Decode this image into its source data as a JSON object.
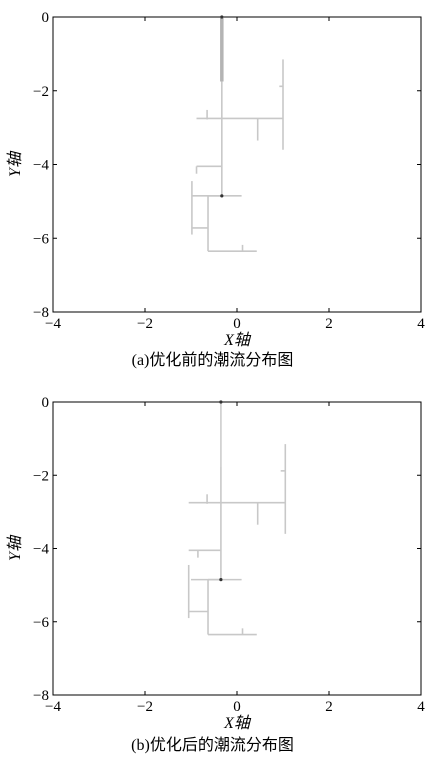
{
  "chart_data": [
    {
      "type": "line",
      "caption": "(a)优化前的潮流分布图",
      "xlabel": "X轴",
      "ylabel": "Y轴",
      "xlim": [
        -4,
        4
      ],
      "ylim": [
        -8,
        0
      ],
      "xticks": [
        "−4",
        "−2",
        "0",
        "2",
        "4"
      ],
      "yticks": [
        "0",
        "−2",
        "−4",
        "−6",
        "−8"
      ],
      "xtick_values": [
        -4,
        -2,
        0,
        2,
        4
      ],
      "ytick_values": [
        0,
        -2,
        -4,
        -6,
        -8
      ],
      "grid": false,
      "line_color": "#c8c8c8",
      "trunk_color": "#b4b4b4",
      "node_color": "#333333",
      "trunk": {
        "x": -0.33,
        "y_top": 0,
        "y_bottom": -1.75
      },
      "segments": [
        {
          "x": [
            -0.33,
            -0.33
          ],
          "y": [
            -1.75,
            -4.85
          ]
        },
        {
          "x": [
            -0.33,
            -0.63
          ],
          "y": [
            -4.85,
            -4.85
          ]
        },
        {
          "x": [
            -0.63,
            -0.63
          ],
          "y": [
            -4.85,
            -6.35
          ]
        },
        {
          "x": [
            -0.63,
            0.43
          ],
          "y": [
            -6.35,
            -6.35
          ]
        },
        {
          "x": [
            0.12,
            0.12
          ],
          "y": [
            -6.35,
            -6.18
          ]
        },
        {
          "x": [
            -0.63,
            -0.98
          ],
          "y": [
            -5.72,
            -5.72
          ]
        },
        {
          "x": [
            -0.98,
            -0.98
          ],
          "y": [
            -4.45,
            -5.9
          ]
        },
        {
          "x": [
            -0.33,
            -0.98
          ],
          "y": [
            -4.85,
            -4.85
          ]
        },
        {
          "x": [
            -0.33,
            0.1
          ],
          "y": [
            -4.85,
            -4.85
          ]
        },
        {
          "x": [
            -0.33,
            -0.88
          ],
          "y": [
            -4.05,
            -4.05
          ]
        },
        {
          "x": [
            -0.88,
            -0.88
          ],
          "y": [
            -4.05,
            -4.25
          ]
        },
        {
          "x": [
            -0.88,
            -0.88
          ],
          "y": [
            -2.75,
            -2.75
          ]
        },
        {
          "x": [
            -0.88,
            1.0
          ],
          "y": [
            -2.75,
            -2.75
          ]
        },
        {
          "x": [
            -0.65,
            -0.65
          ],
          "y": [
            -2.52,
            -2.78
          ]
        },
        {
          "x": [
            0.45,
            0.45
          ],
          "y": [
            -2.75,
            -3.35
          ]
        },
        {
          "x": [
            1.0,
            1.0
          ],
          "y": [
            -1.15,
            -3.6
          ]
        },
        {
          "x": [
            0.92,
            1.0
          ],
          "y": [
            -1.88,
            -1.88
          ]
        }
      ],
      "nodes": [
        {
          "x": -0.33,
          "y": 0
        },
        {
          "x": -0.33,
          "y": -4.85
        }
      ]
    },
    {
      "type": "line",
      "caption": "(b)优化后的潮流分布图",
      "xlabel": "X轴",
      "ylabel": "Y轴",
      "xlim": [
        -4,
        4
      ],
      "ylim": [
        -8,
        0
      ],
      "xticks": [
        "−4",
        "−2",
        "0",
        "2",
        "4"
      ],
      "yticks": [
        "0",
        "−2",
        "−4",
        "−6",
        "−8"
      ],
      "xtick_values": [
        -4,
        -2,
        0,
        2,
        4
      ],
      "ytick_values": [
        0,
        -2,
        -4,
        -6,
        -8
      ],
      "grid": false,
      "line_color": "#c8c8c8",
      "trunk_color": "#d2d2d2",
      "node_color": "#333333",
      "trunk": {
        "x": -0.35,
        "y_top": 0,
        "y_bottom": -1.75
      },
      "segments": [
        {
          "x": [
            -0.35,
            -0.35
          ],
          "y": [
            -1.75,
            -4.85
          ]
        },
        {
          "x": [
            -0.35,
            -0.63
          ],
          "y": [
            -4.85,
            -4.85
          ]
        },
        {
          "x": [
            -0.63,
            -0.63
          ],
          "y": [
            -4.85,
            -6.35
          ]
        },
        {
          "x": [
            -0.63,
            0.43
          ],
          "y": [
            -6.35,
            -6.35
          ]
        },
        {
          "x": [
            0.12,
            0.12
          ],
          "y": [
            -6.35,
            -6.18
          ]
        },
        {
          "x": [
            -0.63,
            -1.05
          ],
          "y": [
            -5.72,
            -5.72
          ]
        },
        {
          "x": [
            -1.05,
            -1.05
          ],
          "y": [
            -4.45,
            -5.9
          ]
        },
        {
          "x": [
            -0.35,
            -1.0
          ],
          "y": [
            -4.85,
            -4.85
          ]
        },
        {
          "x": [
            -0.35,
            0.1
          ],
          "y": [
            -4.85,
            -4.85
          ]
        },
        {
          "x": [
            -0.35,
            -1.05
          ],
          "y": [
            -4.05,
            -4.05
          ]
        },
        {
          "x": [
            -0.85,
            -0.85
          ],
          "y": [
            -4.05,
            -4.25
          ]
        },
        {
          "x": [
            -1.05,
            1.05
          ],
          "y": [
            -2.75,
            -2.75
          ]
        },
        {
          "x": [
            -0.65,
            -0.65
          ],
          "y": [
            -2.52,
            -2.78
          ]
        },
        {
          "x": [
            0.45,
            0.45
          ],
          "y": [
            -2.75,
            -3.35
          ]
        },
        {
          "x": [
            1.05,
            1.05
          ],
          "y": [
            -1.15,
            -3.6
          ]
        },
        {
          "x": [
            0.95,
            1.05
          ],
          "y": [
            -1.88,
            -1.88
          ]
        }
      ],
      "nodes": [
        {
          "x": -0.35,
          "y": 0
        },
        {
          "x": -0.35,
          "y": -4.85
        }
      ]
    }
  ]
}
